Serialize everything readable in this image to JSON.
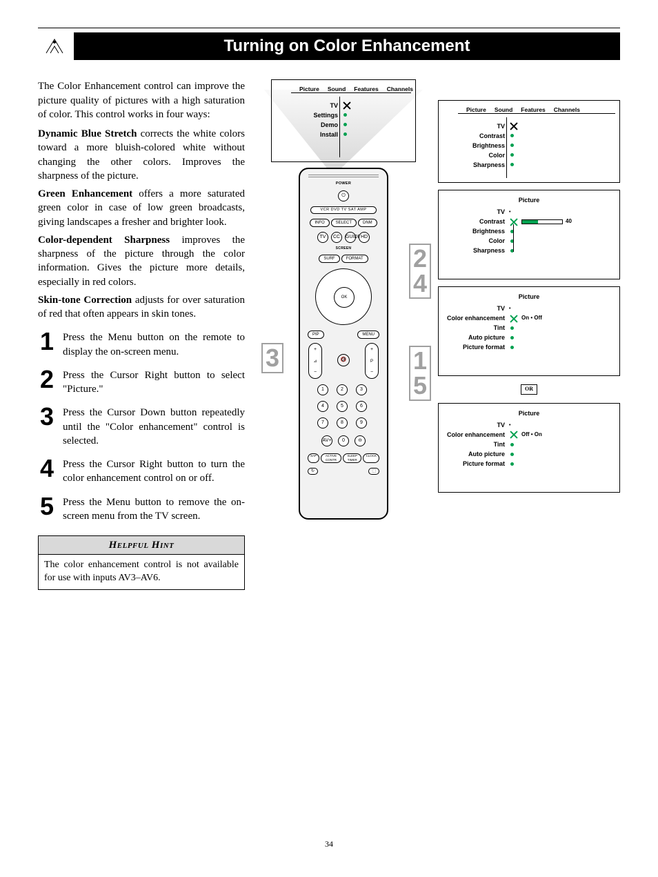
{
  "page_number": "34",
  "title": "Turning on Color Enhancement",
  "intro": "The Color Enhancement control can improve the picture quality of pictures with a high saturation of color. This control works in four ways:",
  "features": [
    {
      "name": "Dynamic Blue Stretch",
      "desc": " corrects the white colors toward a more bluish-colored white without changing the other colors. Improves the sharpness of the picture."
    },
    {
      "name": "Green Enhancement",
      "desc": " offers a more saturated green color in case of low green broadcasts, giving landscapes a fresher and brighter look."
    },
    {
      "name": "Color-dependent Sharpness",
      "desc": " improves the sharpness of the picture through the color information. Gives the picture more details, especially in red colors."
    },
    {
      "name": "Skin-tone Correction",
      "desc": " adjusts for over saturation of red that often appears in skin tones."
    }
  ],
  "steps": [
    "Press the Menu button on the remote to display the on-screen menu.",
    "Press the Cursor Right button to select \"Picture.\"",
    "Press the Cursor Down button repeatedly until the \"Color enhancement\" control is selected.",
    "Press the Cursor Right button to turn the color enhancement control on or off.",
    "Press the Menu button to remove the on-screen menu from the TV screen."
  ],
  "hint": {
    "title": "Helpful Hint",
    "body": "The color enhancement control is not available for use with inputs AV3–AV6."
  },
  "menu_tabs": [
    "Picture",
    "Sound",
    "Features",
    "Channels"
  ],
  "menu1_side": [
    "TV",
    "Settings",
    "Demo",
    "Install"
  ],
  "menu2_side": [
    "TV",
    "Contrast",
    "Brightness",
    "Color",
    "Sharpness"
  ],
  "menu3": {
    "title": "Picture",
    "side": [
      "TV",
      "Contrast",
      "Brightness",
      "Color",
      "Sharpness"
    ],
    "contrast_value": "40"
  },
  "menu4": {
    "title": "Picture",
    "side": [
      "TV",
      "Color enhancement",
      "Tint",
      "Auto picture",
      "Picture format"
    ],
    "value": "On  •  Off"
  },
  "menu5": {
    "title": "Picture",
    "side": [
      "TV",
      "Color enhancement",
      "Tint",
      "Auto picture",
      "Picture format"
    ],
    "value": "Off  •  On"
  },
  "or_label": "OR",
  "remote": {
    "power": "POWER",
    "sources": "VCR  DVD   TV   SAT  AMP",
    "row1": [
      "INFO",
      "SELECT",
      "DNM"
    ],
    "row2": [
      "TV",
      "CC",
      "GUIDE",
      "HD"
    ],
    "row3": [
      "SURF",
      "FORMAT"
    ],
    "screen_label": "SCREEN",
    "ok": "OK",
    "pip": "PIP",
    "menu": "MENU",
    "mute": "🔇",
    "vol": "⊿",
    "ch": "P",
    "nums": [
      "1",
      "2",
      "3",
      "4",
      "5",
      "6",
      "7",
      "8",
      "9"
    ],
    "bottom_row": [
      "AV+",
      "0",
      "⊖"
    ],
    "tiny1": [
      "SAP",
      "ACTIVE CONTR",
      "SLEEP TIMER",
      "CLOCK"
    ],
    "tiny2": [
      "↻",
      "",
      "",
      "⬚"
    ]
  },
  "callouts": {
    "c24": [
      "2",
      "4"
    ],
    "c3": "3",
    "c15": [
      "1",
      "5"
    ]
  },
  "colors": {
    "accent": "#00a050",
    "callout_gray": "#a0a0a0",
    "hint_bg": "#d9d9d9"
  }
}
